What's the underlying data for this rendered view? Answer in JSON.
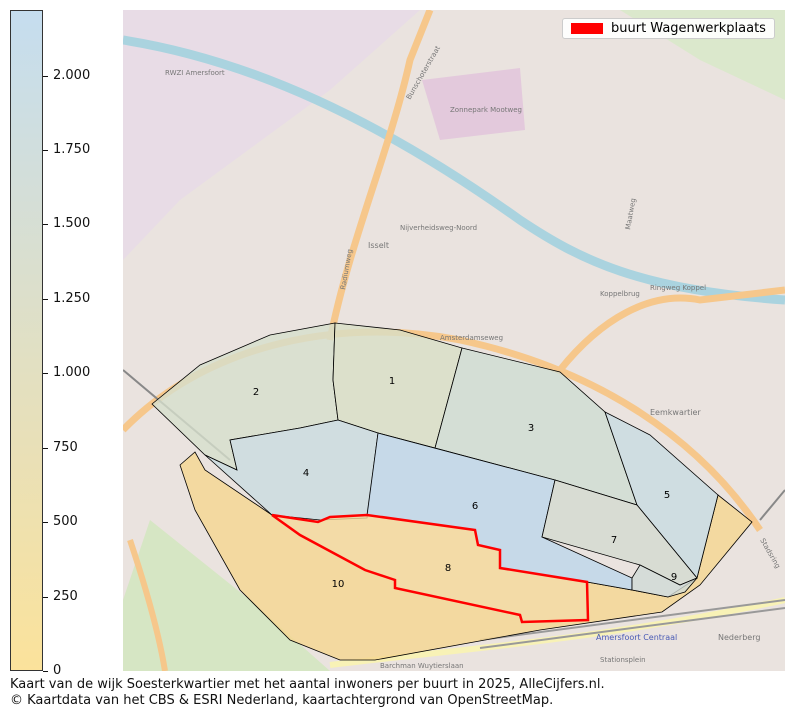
{
  "legend": {
    "label": "buurt Wagenwerkplaats",
    "color": "#ff0000"
  },
  "colorbar": {
    "min": 0,
    "max": 2220,
    "colors": [
      "#fbe29b",
      "#c5ddef"
    ],
    "ticks": [
      "0",
      "250",
      "500",
      "750",
      "1.000",
      "1.250",
      "1.500",
      "1.750",
      "2.000"
    ],
    "tick_values": [
      0,
      250,
      500,
      750,
      1000,
      1250,
      1500,
      1750,
      2000
    ]
  },
  "regions": [
    {
      "label": "1",
      "color": "#d8dfc6"
    },
    {
      "label": "2",
      "color": "#d6dfcc"
    },
    {
      "label": "3",
      "color": "#cedcd2"
    },
    {
      "label": "4",
      "color": "#c9dbe0"
    },
    {
      "label": "5",
      "color": "#c8dbe1"
    },
    {
      "label": "6",
      "color": "#bdd6ea"
    },
    {
      "label": "7",
      "color": "#d3d9cf"
    },
    {
      "label": "8",
      "color": "#f5d898"
    },
    {
      "label": "9",
      "color": "#cfd9d6"
    },
    {
      "label": "10",
      "color": "#f5d690"
    }
  ],
  "map_labels": [
    "RWZI Amersfoort",
    "Zonnepark Mootweg",
    "Isselt",
    "Eemkwartier",
    "Amersfoort Centraal",
    "Nederberg",
    "Stationsplein",
    "Barchman Wuytierslaan",
    "Amsterdamseweg",
    "Ringweg Koppel",
    "Bunschoterstraat",
    "Radiumweg",
    "Maatweg",
    "Koppelbrug",
    "Stadsring",
    "Nijverheidsweg-Noord"
  ],
  "caption": {
    "line1": "Kaart van de wijk Soesterkwartier met het aantal inwoners per buurt in 2025, AlleCijfers.nl.",
    "line2": "© Kaartdata van het CBS & ESRI Nederland, kaartachtergrond van OpenStreetMap."
  }
}
